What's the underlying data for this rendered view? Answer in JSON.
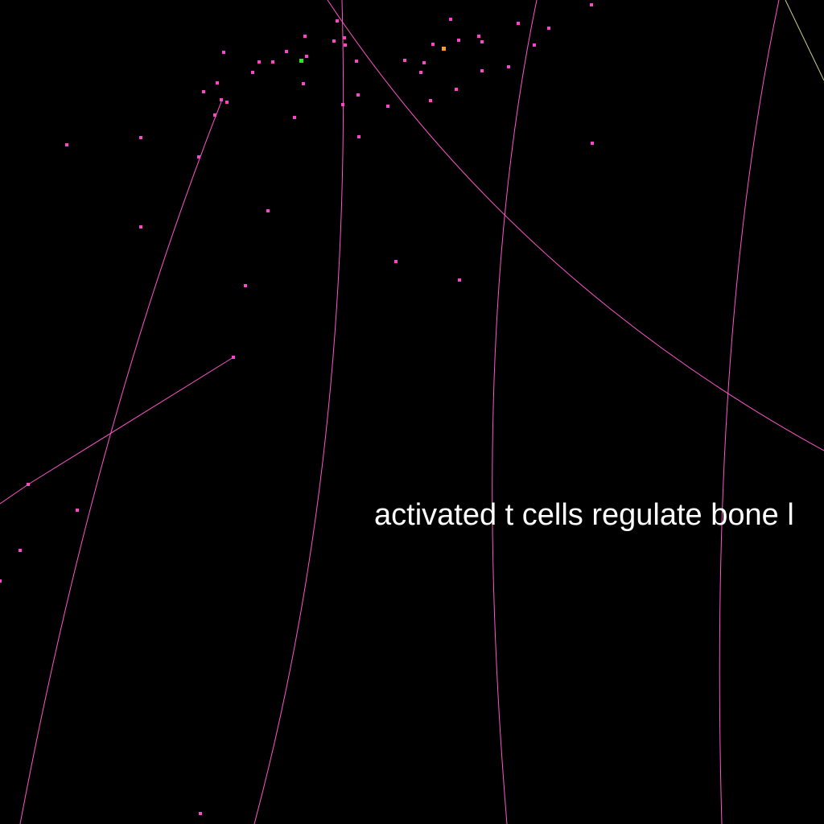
{
  "caption": "activated t cells regulate bone l",
  "colors": {
    "background": "#000000",
    "edge": "#ff55cc",
    "edge_faint": "#cccc88",
    "node": "#ff44cc",
    "node_highlight_green": "#22ee22",
    "node_highlight_orange": "#ff9933",
    "text": "#ffffff"
  }
}
